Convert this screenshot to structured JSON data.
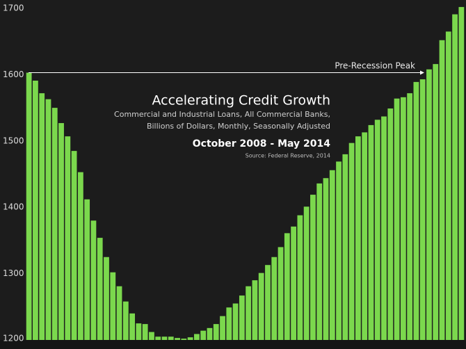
{
  "chart_data": {
    "type": "bar",
    "title": "Accelerating Credit Growth",
    "subtitle": [
      "Commercial and Industrial Loans, All Commercial Banks,",
      "Billions of Dollars, Monthly, Seasonally Adjusted"
    ],
    "date_range": "October 2008 - May 2014",
    "source": "Source: Federal Reserve, 2014",
    "annotation": "Pre-Recession Peak",
    "categories": [
      null,
      null,
      null,
      null,
      null,
      null,
      null,
      null,
      null,
      null,
      null,
      null,
      null,
      null,
      null,
      null,
      null,
      null,
      null,
      null,
      null,
      null,
      null,
      null,
      null,
      null,
      null,
      null,
      null,
      null,
      null,
      null,
      null,
      null,
      null,
      null,
      null,
      null,
      null,
      null,
      null,
      null,
      null,
      null,
      null,
      null,
      null,
      null,
      null,
      null,
      null,
      null,
      null,
      null,
      null,
      null,
      null,
      null,
      null,
      null,
      null,
      null,
      null,
      null,
      null,
      null,
      null,
      null
    ],
    "values": [
      1603,
      1591,
      1572,
      1563,
      1550,
      1527,
      1507,
      1485,
      1453,
      1412,
      1380,
      1354,
      1325,
      1302,
      1281,
      1258,
      1240,
      1225,
      1224,
      1212,
      1205,
      1205,
      1205,
      1203,
      1202,
      1204,
      1209,
      1214,
      1218,
      1224,
      1236,
      1249,
      1255,
      1267,
      1281,
      1290,
      1301,
      1313,
      1325,
      1340,
      1361,
      1371,
      1388,
      1401,
      1419,
      1436,
      1444,
      1456,
      1469,
      1480,
      1497,
      1507,
      1513,
      1524,
      1532,
      1537,
      1549,
      1564,
      1566,
      1572,
      1589,
      1593,
      1608,
      1616,
      1652,
      1665,
      1691,
      1702
    ],
    "color": "#7bd84d",
    "ylim": [
      1200,
      1700
    ],
    "yticks": [
      1200,
      1300,
      1400,
      1500,
      1600,
      1700
    ]
  }
}
